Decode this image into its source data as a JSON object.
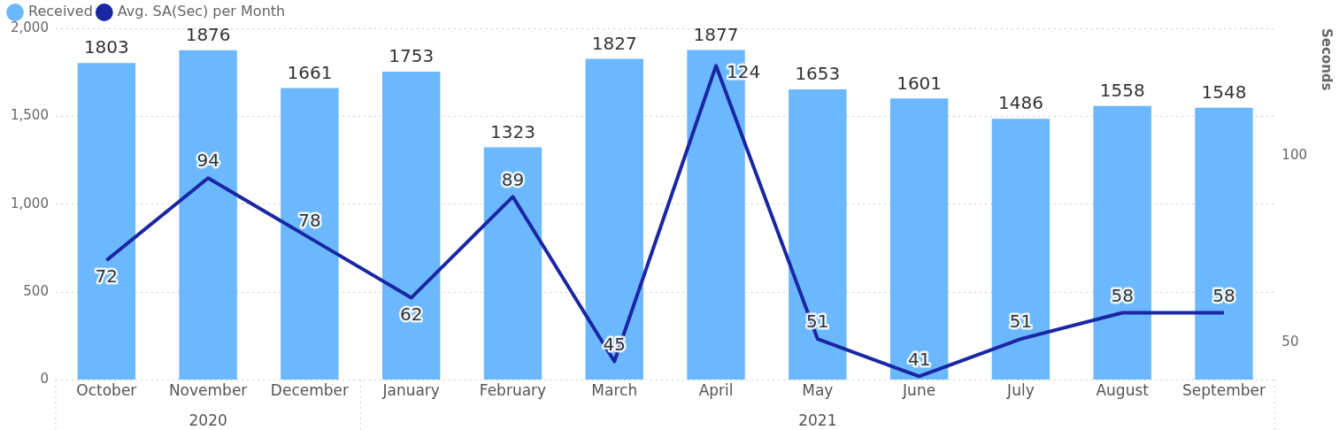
{
  "chart_data": {
    "type": "bar",
    "categories": [
      "October",
      "November",
      "December",
      "January",
      "February",
      "March",
      "April",
      "May",
      "June",
      "July",
      "August",
      "September"
    ],
    "series": [
      {
        "name": "Received",
        "color": "#6cb8ff",
        "values": [
          1803,
          1876,
          1661,
          1753,
          1323,
          1827,
          1877,
          1653,
          1601,
          1486,
          1558,
          1548
        ]
      },
      {
        "name": "Avg. SA(Sec) per Month",
        "type": "line",
        "axis": "y2",
        "color": "#1a27a3",
        "values": [
          72,
          94,
          78,
          62,
          89,
          45,
          124,
          51,
          41,
          51,
          58,
          58
        ]
      }
    ],
    "y2label": "Seconds",
    "ylim": [
      0,
      2000
    ],
    "yticks": [
      {
        "value": 0,
        "label": "0"
      },
      {
        "value": 500,
        "label": "500"
      },
      {
        "value": 1000,
        "label": "1,000"
      },
      {
        "value": 1500,
        "label": "1,500"
      },
      {
        "value": 2000,
        "label": "2,000"
      }
    ],
    "y2lim": [
      40,
      134
    ],
    "y2ticks": [
      50,
      100
    ],
    "annotations": [
      "2020",
      "2021"
    ],
    "data_labels": true,
    "grid": "y",
    "legend": "top left",
    "marker": "none",
    "line_style": "solid"
  }
}
